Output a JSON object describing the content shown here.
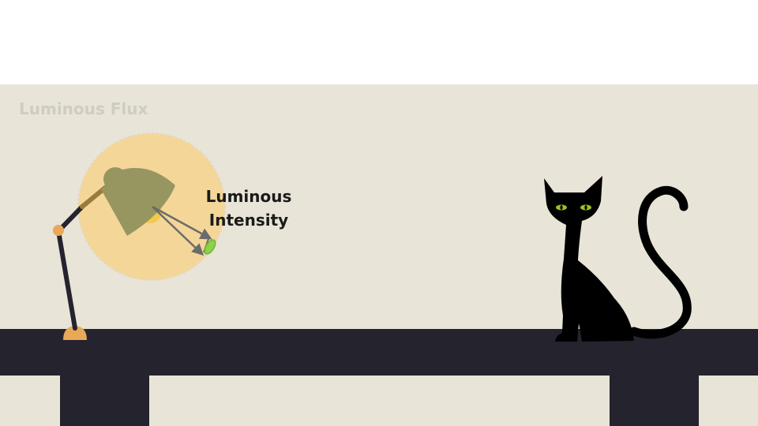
{
  "diagram": {
    "title": "Luminous Flux",
    "callout_label": "Luminous Intensity",
    "colors": {
      "wall": "#e8e4d7",
      "table": "#25232e",
      "lamp_shade": "#989660",
      "glow": "#f4d698",
      "bulb": "#f2c94c",
      "lamp_joint": "#e8a858",
      "arrow": "#6b6b6b",
      "target": "#8ed14b",
      "cat": "#000000",
      "cat_eyes": "#9ac21a"
    },
    "icons": [
      "desk-lamp-icon",
      "cat-icon"
    ]
  }
}
